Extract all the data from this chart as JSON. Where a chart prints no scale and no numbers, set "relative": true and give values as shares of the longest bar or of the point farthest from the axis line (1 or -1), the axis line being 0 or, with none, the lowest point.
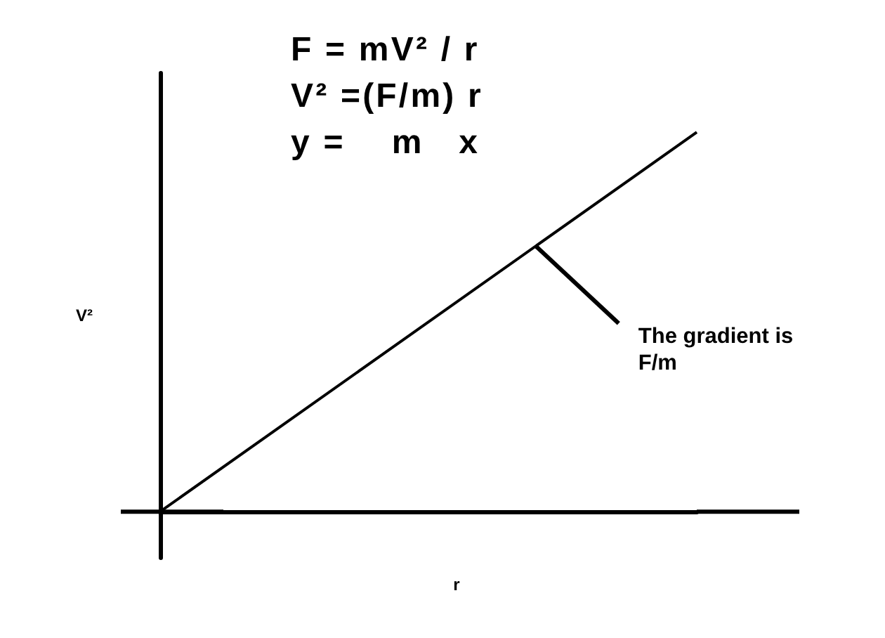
{
  "chart_data": {
    "type": "line",
    "relative": true,
    "categories": [
      null,
      null
    ],
    "series": [
      {
        "color": "#000000",
        "values": [
          0,
          1
        ]
      }
    ],
    "xlabel": "r",
    "ylabel": "V²",
    "annotations": [
      "F = mV² / r",
      "V² =(F/m) r",
      "y =    m   x",
      "The gradient is F/m"
    ]
  }
}
